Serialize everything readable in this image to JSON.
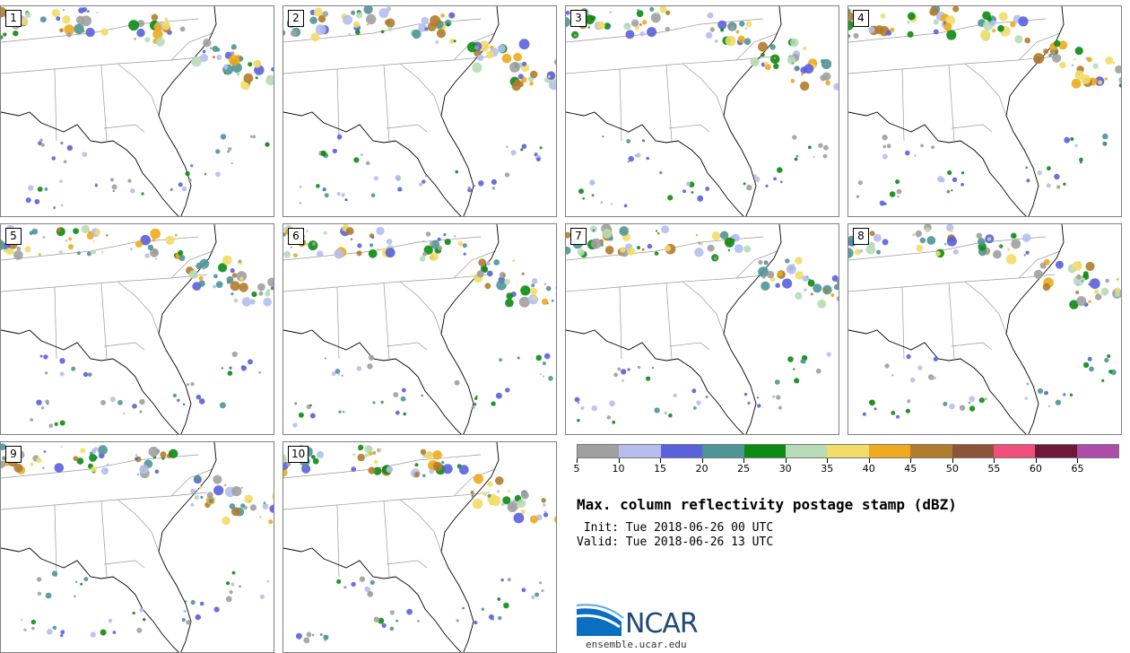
{
  "panels": [
    {
      "label": "1"
    },
    {
      "label": "2"
    },
    {
      "label": "3"
    },
    {
      "label": "4"
    },
    {
      "label": "5"
    },
    {
      "label": "6"
    },
    {
      "label": "7"
    },
    {
      "label": "8"
    },
    {
      "label": "9"
    },
    {
      "label": "10"
    }
  ],
  "colorbar": {
    "colors": [
      "#a0a0a0",
      "#b4bfee",
      "#5a61dc",
      "#4f9597",
      "#0c8a12",
      "#b6dbb6",
      "#f1dd67",
      "#eeaa1c",
      "#b27c2c",
      "#8b5538",
      "#ef4f7a",
      "#6f1838",
      "#ad4da9"
    ],
    "ticks": [
      "5",
      "10",
      "15",
      "20",
      "25",
      "30",
      "35",
      "40",
      "45",
      "50",
      "55",
      "60",
      "65"
    ]
  },
  "title": "Max. column reflectivity postage stamp (dBZ)",
  "init": " Init: Tue 2018-06-26 00 UTC",
  "valid": "Valid: Tue 2018-06-26 13 UTC",
  "logo": {
    "text": "NCAR",
    "url": "ensemble.ucar.edu"
  }
}
